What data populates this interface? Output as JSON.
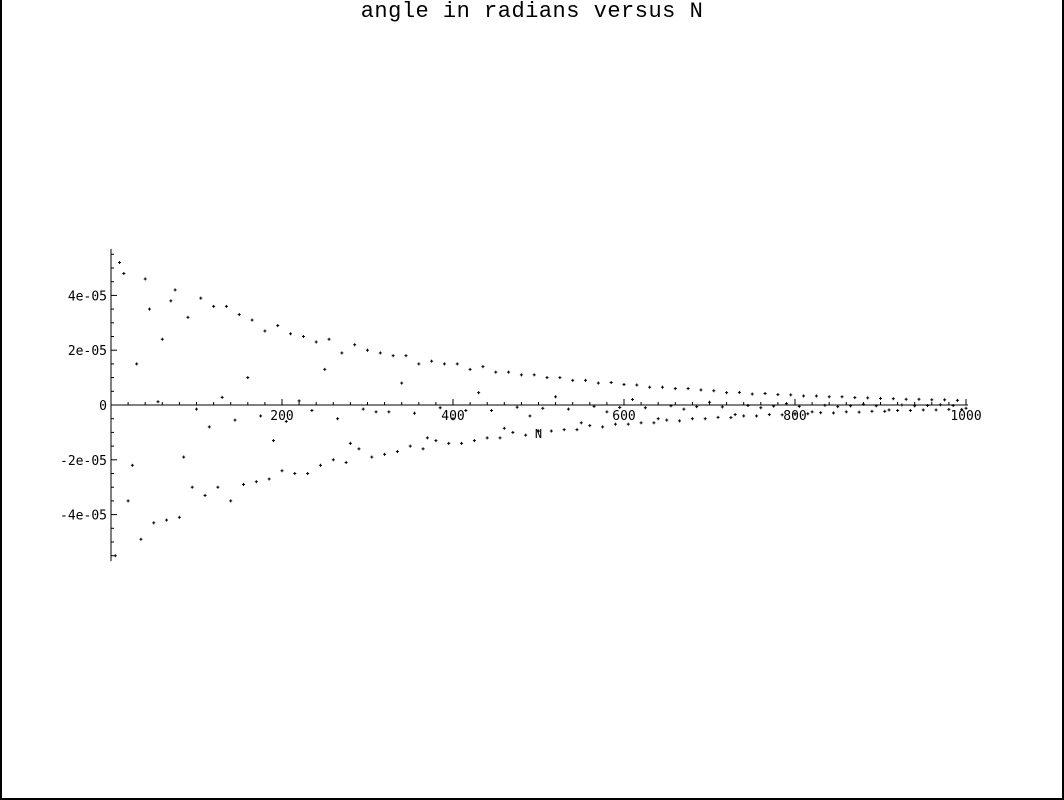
{
  "chart_data": {
    "type": "scatter",
    "title": "angle in radians versus N",
    "xlabel": "N",
    "ylabel": "",
    "xlim": [
      0,
      1000
    ],
    "ylim": [
      -5.7e-05,
      5.7e-05
    ],
    "x_ticks": [
      200,
      400,
      600,
      800,
      1000
    ],
    "x_tick_labels": [
      "200",
      "400",
      "600",
      "800",
      "1000"
    ],
    "y_ticks": [
      -4e-05,
      -2e-05,
      0,
      2e-05,
      4e-05
    ],
    "y_tick_labels": [
      "-4e-05",
      "-2e-05",
      "0",
      "2e-05",
      "4e-05"
    ],
    "grid": false,
    "legend": "none",
    "marker": "+",
    "series": [
      {
        "points_note_x": "N = 10, 20, ..., 1000",
        "x": [
          10,
          20,
          30,
          40,
          50,
          60,
          70,
          80,
          90,
          100,
          110,
          120,
          130,
          140,
          150,
          160,
          170,
          180,
          190,
          200,
          210,
          220,
          230,
          240,
          250,
          260,
          270,
          280,
          290,
          300,
          310,
          320,
          330,
          340,
          350,
          360,
          370,
          380,
          390,
          400,
          410,
          420,
          430,
          440,
          450,
          460,
          470,
          480,
          490,
          500,
          510,
          520,
          530,
          540,
          550,
          560,
          570,
          580,
          590,
          600,
          610,
          620,
          630,
          640,
          650,
          660,
          670,
          680,
          690,
          700,
          710,
          720,
          730,
          740,
          750,
          760,
          770,
          780,
          790,
          800,
          810,
          820,
          830,
          840,
          850,
          860,
          870,
          880,
          890,
          900,
          910,
          920,
          930,
          940,
          950,
          960,
          970,
          980,
          990,
          1000
        ],
        "y": [
          5.2e-05,
          -3.5e-05,
          1.5e-05,
          4.6e-05,
          -4.3e-05,
          2.4e-05,
          3.8e-05,
          -4.1e-05,
          3.2e-05,
          -1.5e-06,
          -3.3e-05,
          3.6e-05,
          2.8e-06,
          -3.5e-05,
          3.3e-05,
          1e-05,
          -2.8e-05,
          2.7e-05,
          -1.3e-05,
          -2.4e-05,
          2.6e-05,
          1.5e-06,
          -2.5e-05,
          2.3e-05,
          1.3e-05,
          -2e-05,
          1.9e-05,
          -1.4e-05,
          -1.6e-05,
          2e-05,
          -2.5e-06,
          -1.8e-05,
          1.8e-05,
          8e-06,
          -1.5e-05,
          1.5e-05,
          -1.2e-05,
          -1.3e-05,
          1.5e-05,
          -5e-06,
          -1.4e-05,
          1.3e-05,
          4.5e-06,
          -1.2e-05,
          1.2e-05,
          -8.5e-06,
          -1e-05,
          1.1e-05,
          -4e-06,
          -9.5e-06,
          1e-05,
          3e-06,
          -9e-06,
          9e-06,
          -6.5e-06,
          -7.5e-06,
          8e-06,
          -2.5e-06,
          -7e-06,
          7.5e-06,
          2e-06,
          -6.5e-06,
          6.5e-06,
          -5e-06,
          -5.5e-06,
          6e-06,
          -1.5e-06,
          -5e-06,
          5.5e-06,
          1e-06,
          -4.5e-06,
          4.5e-06,
          -3.5e-06,
          -4e-06,
          4e-06,
          -1e-06,
          -3.5e-06,
          3.8e-06,
          5e-07,
          -3.2e-06,
          3.3e-06,
          -2.5e-06,
          -2.8e-06,
          3e-06,
          -6e-07,
          -2.5e-06,
          2.7e-06,
          3e-07,
          -2.3e-06,
          2.4e-06,
          -1.8e-06,
          -2e-06,
          2.1e-06,
          -3e-07,
          -1.8e-06,
          1.9e-06,
          1e-07,
          -1.6e-06,
          1.7e-06,
          -1.2e-06
        ]
      },
      {
        "points_note_x": "N = 5, 15, ..., 995",
        "x": [
          5,
          15,
          25,
          35,
          45,
          55,
          65,
          75,
          85,
          95,
          105,
          115,
          125,
          135,
          145,
          155,
          165,
          175,
          185,
          195,
          205,
          215,
          225,
          235,
          245,
          255,
          265,
          275,
          285,
          295,
          305,
          315,
          325,
          335,
          345,
          355,
          365,
          375,
          385,
          395,
          405,
          415,
          425,
          435,
          445,
          455,
          465,
          475,
          485,
          495,
          505,
          515,
          525,
          535,
          545,
          555,
          565,
          575,
          585,
          595,
          605,
          615,
          625,
          635,
          645,
          655,
          665,
          675,
          685,
          695,
          705,
          715,
          725,
          735,
          745,
          755,
          765,
          775,
          785,
          795,
          805,
          815,
          825,
          835,
          845,
          855,
          865,
          875,
          885,
          895,
          905,
          915,
          925,
          935,
          945,
          955,
          965,
          975,
          985,
          995
        ],
        "y": [
          -5.5e-05,
          4.8e-05,
          -2.2e-05,
          -4.9e-05,
          3.5e-05,
          1.2e-06,
          -4.2e-05,
          4.2e-05,
          -1.9e-05,
          -3e-05,
          3.9e-05,
          -8e-06,
          -3e-05,
          3.6e-05,
          -5.5e-06,
          -2.9e-05,
          3.1e-05,
          -4e-06,
          -2.7e-05,
          2.9e-05,
          -6e-06,
          -2.5e-05,
          2.5e-05,
          -2e-06,
          -2.2e-05,
          2.4e-05,
          -5e-06,
          -2.1e-05,
          2.2e-05,
          -1.5e-06,
          -1.9e-05,
          1.9e-05,
          -2.5e-06,
          -1.7e-05,
          1.8e-05,
          -3e-06,
          -1.6e-05,
          1.6e-05,
          -1e-06,
          -1.4e-05,
          1.5e-05,
          -2e-06,
          -1.3e-05,
          1.4e-05,
          -2e-06,
          -1.2e-05,
          1.2e-05,
          -8e-07,
          -1.1e-05,
          1.1e-05,
          -1.2e-06,
          -9.5e-06,
          1e-05,
          -1.5e-06,
          -9e-06,
          9e-06,
          -5e-07,
          -8e-06,
          8.2e-06,
          -9e-07,
          -7e-06,
          7.3e-06,
          -1e-06,
          -6.5e-06,
          6.5e-06,
          -3e-07,
          -5.8e-06,
          6e-06,
          -6e-07,
          -5e-06,
          5.2e-06,
          -7e-07,
          -4.6e-06,
          4.6e-06,
          -2e-07,
          -4e-06,
          4.2e-06,
          -4e-07,
          -3.6e-06,
          3.7e-06,
          -5e-07,
          -3.2e-06,
          3.3e-06,
          -1e-07,
          -2.9e-06,
          3e-06,
          -3e-07,
          -2.6e-06,
          2.6e-06,
          -3e-07,
          -2.3e-06,
          2.3e-06,
          0,
          -2e-06,
          2.1e-06,
          -2e-07,
          -1.8e-06,
          1.9e-06,
          -2e-07,
          -1.6e-06
        ]
      }
    ]
  }
}
